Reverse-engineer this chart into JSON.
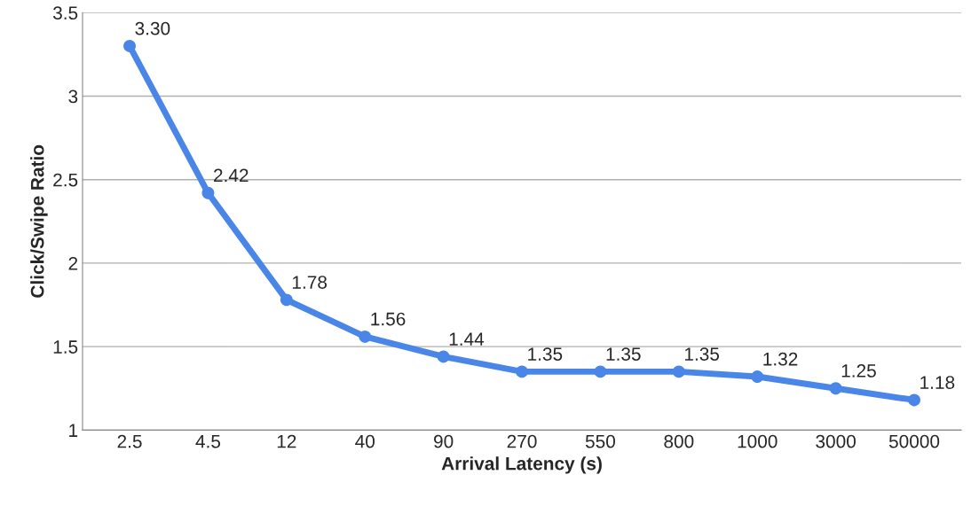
{
  "chart_data": {
    "type": "line",
    "xlabel": "Arrival Latency (s)",
    "ylabel": "Click/Swipe Ratio",
    "categories": [
      "2.5",
      "4.5",
      "12",
      "40",
      "90",
      "270",
      "550",
      "800",
      "1000",
      "3000",
      "50000"
    ],
    "series": [
      {
        "color": "#4a86e8",
        "values": [
          3.3,
          2.42,
          1.78,
          1.56,
          1.44,
          1.35,
          1.35,
          1.35,
          1.32,
          1.25,
          1.18
        ],
        "value_labels": [
          "3.30",
          "2.42",
          "1.78",
          "1.56",
          "1.44",
          "1.35",
          "1.35",
          "1.35",
          "1.32",
          "1.25",
          "1.18"
        ]
      }
    ],
    "ylim": [
      1,
      3.5
    ],
    "yticks": [
      1,
      1.5,
      2,
      2.5,
      3,
      3.5
    ],
    "grid": "y",
    "marker": "circle",
    "line_style": "solid"
  }
}
